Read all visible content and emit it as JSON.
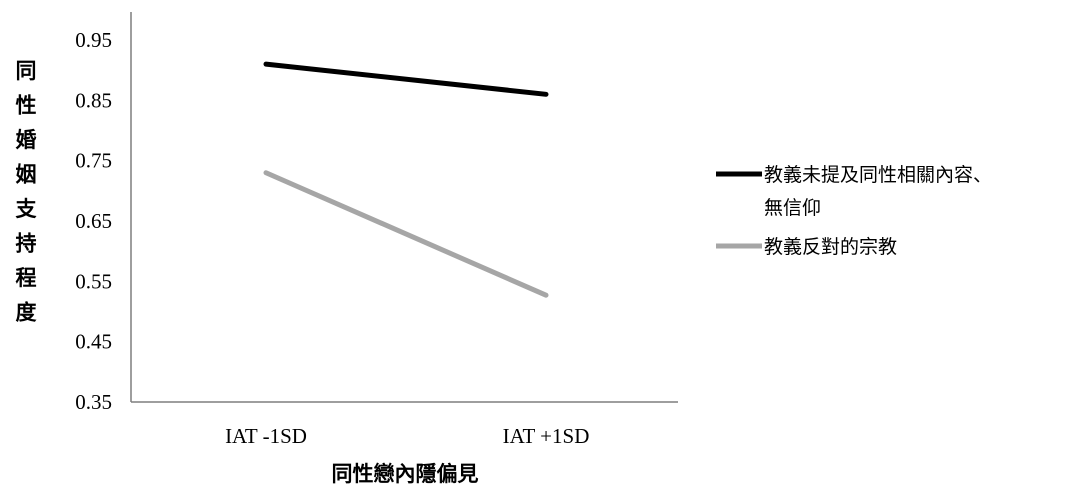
{
  "chart_data": {
    "type": "line",
    "categories": [
      "IAT -1SD",
      "IAT +1SD"
    ],
    "series": [
      {
        "name": "教義未提及同性相關內容、無信仰",
        "name_lines": [
          "教義未提及同性相關內容、",
          "無信仰"
        ],
        "values": [
          0.91,
          0.86
        ],
        "color": "#000000"
      },
      {
        "name": "教義反對的宗教",
        "name_lines": [
          "教義反對的宗教"
        ],
        "values": [
          0.73,
          0.527
        ],
        "color": "#a6a6a6"
      }
    ],
    "xlabel": "同性戀內隱偏見",
    "ylabel": "同性婚姻支持程度",
    "ylabel_chars": [
      "同",
      "性",
      "婚",
      "姻",
      "支",
      "持",
      "程",
      "度"
    ],
    "ylim": [
      0.35,
      0.95
    ],
    "yticks": [
      "0.35",
      "0.45",
      "0.55",
      "0.65",
      "0.75",
      "0.85",
      "0.95"
    ],
    "grid": false,
    "legend_position": "right"
  }
}
